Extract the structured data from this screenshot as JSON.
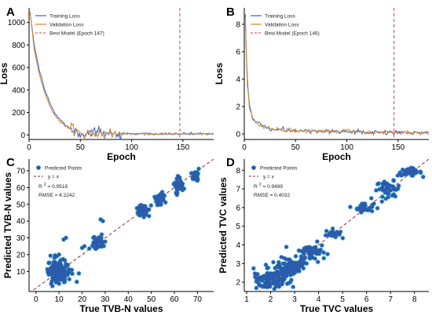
{
  "chart_data": [
    {
      "panel": "A",
      "type": "line",
      "xlabel": "Epoch",
      "ylabel": "Loss",
      "xlim": [
        0,
        180
      ],
      "ylim": [
        -40,
        1130
      ],
      "xticks": [
        0,
        50,
        100,
        150
      ],
      "yticks": [
        0,
        200,
        400,
        600,
        800,
        1000
      ],
      "legend": {
        "position": "top-left",
        "entries": [
          "Training Loss",
          "Validation Loss",
          "Best Model (Epoch 147)"
        ]
      },
      "best_epoch": 147,
      "series": [
        {
          "name": "Training Loss",
          "color": "#3a5fc8",
          "x": [
            1,
            5,
            10,
            15,
            20,
            25,
            30,
            35,
            40,
            45,
            50,
            55,
            60,
            70,
            80,
            100,
            120,
            150,
            180
          ],
          "y": [
            1090,
            800,
            580,
            410,
            290,
            200,
            140,
            90,
            60,
            40,
            30,
            20,
            15,
            12,
            10,
            9,
            9,
            10,
            9
          ]
        },
        {
          "name": "Validation Loss",
          "color": "#d2882e",
          "x": [
            1,
            5,
            10,
            15,
            20,
            25,
            30,
            35,
            40,
            45,
            50,
            55,
            60,
            70,
            80,
            100,
            120,
            150,
            180
          ],
          "y": [
            1100,
            760,
            540,
            380,
            260,
            175,
            120,
            80,
            55,
            40,
            28,
            20,
            15,
            12,
            10,
            9,
            9,
            10,
            9
          ]
        }
      ]
    },
    {
      "panel": "B",
      "type": "line",
      "xlabel": "Epoch",
      "ylabel": "Loss",
      "xlim": [
        0,
        180
      ],
      "ylim": [
        -0.4,
        9.2
      ],
      "xticks": [
        0,
        50,
        100,
        150
      ],
      "yticks": [
        0,
        2,
        4,
        6,
        8
      ],
      "legend": {
        "position": "top-left",
        "entries": [
          "Training Loss",
          "Validation Loss",
          "Best Model (Epoch 146)"
        ]
      },
      "best_epoch": 146,
      "series": [
        {
          "name": "Training Loss",
          "color": "#3a5fc8",
          "x": [
            1,
            2,
            3,
            5,
            8,
            12,
            20,
            30,
            50,
            80,
            120,
            150,
            180
          ],
          "y": [
            8.9,
            6.0,
            4.0,
            2.2,
            1.2,
            0.8,
            0.5,
            0.35,
            0.25,
            0.2,
            0.15,
            0.12,
            0.1
          ]
        },
        {
          "name": "Validation Loss",
          "color": "#d2882e",
          "x": [
            1,
            2,
            3,
            5,
            8,
            12,
            20,
            30,
            50,
            80,
            120,
            150,
            180
          ],
          "y": [
            8.7,
            5.6,
            3.8,
            2.0,
            1.1,
            0.75,
            0.5,
            0.35,
            0.25,
            0.2,
            0.15,
            0.12,
            0.1
          ]
        }
      ]
    },
    {
      "panel": "C",
      "type": "scatter",
      "xlabel": "True TVB-N values",
      "ylabel": "Predicted TVB-N values",
      "xlim": [
        -3,
        77
      ],
      "ylim": [
        -2,
        77
      ],
      "xticks": [
        0,
        10,
        20,
        30,
        40,
        50,
        60,
        70
      ],
      "yticks": [
        10,
        20,
        30,
        40,
        50,
        60,
        70
      ],
      "legend": {
        "position": "top-left",
        "entries": [
          "Predicted Points",
          "y = x"
        ]
      },
      "r2_label": "R",
      "r2_sup": "2",
      "r2_value": "= 0.9518",
      "rmse": "RMSE = 4.2242",
      "clusters": [
        {
          "x": 9.5,
          "y": 10,
          "sx": 2.6,
          "sy": 3.2,
          "n": 140
        },
        {
          "x": 27,
          "y": 27,
          "sx": 1.3,
          "sy": 2.0,
          "n": 40
        },
        {
          "x": 46,
          "y": 46,
          "sx": 1.3,
          "sy": 1.8,
          "n": 50
        },
        {
          "x": 54,
          "y": 53,
          "sx": 1.0,
          "sy": 1.8,
          "n": 40
        },
        {
          "x": 62,
          "y": 61,
          "sx": 1.0,
          "sy": 2.2,
          "n": 50
        },
        {
          "x": 69,
          "y": 68,
          "sx": 1.0,
          "sy": 1.4,
          "n": 30
        }
      ],
      "points": [
        [
          12,
          29
        ],
        [
          13,
          30
        ],
        [
          28,
          41
        ],
        [
          29,
          40
        ],
        [
          8,
          18
        ],
        [
          9,
          19
        ],
        [
          10,
          20
        ],
        [
          20,
          24
        ],
        [
          21,
          25
        ],
        [
          49,
          43
        ]
      ]
    },
    {
      "panel": "D",
      "type": "scatter",
      "xlabel": "True TVC values",
      "ylabel": "Predicted TVC values",
      "xlim": [
        0.9,
        8.6
      ],
      "ylim": [
        1.5,
        8.6
      ],
      "xticks": [
        1,
        2,
        3,
        4,
        5,
        6,
        7,
        8
      ],
      "yticks": [
        2,
        3,
        4,
        5,
        6,
        7,
        8
      ],
      "legend": {
        "position": "top-left",
        "entries": [
          "Predicted Points",
          "y = x"
        ]
      },
      "r2_label": "R",
      "r2_sup": "2",
      "r2_value": "= 0.9499",
      "rmse": "RMSE = 0.4032",
      "clusters": [
        {
          "x": 2.1,
          "y": 2.2,
          "sx": 0.35,
          "sy": 0.25,
          "n": 110
        },
        {
          "x": 2.8,
          "y": 2.8,
          "sx": 0.3,
          "sy": 0.25,
          "n": 90
        },
        {
          "x": 3.7,
          "y": 3.6,
          "sx": 0.3,
          "sy": 0.25,
          "n": 60
        },
        {
          "x": 4.6,
          "y": 4.6,
          "sx": 0.15,
          "sy": 0.12,
          "n": 25
        },
        {
          "x": 5.9,
          "y": 6.0,
          "sx": 0.2,
          "sy": 0.12,
          "n": 35
        },
        {
          "x": 6.9,
          "y": 7.0,
          "sx": 0.25,
          "sy": 0.2,
          "n": 45
        },
        {
          "x": 7.8,
          "y": 7.9,
          "sx": 0.25,
          "sy": 0.1,
          "n": 45
        }
      ],
      "points": [
        [
          3.5,
          3.0
        ],
        [
          1.6,
          1.8
        ],
        [
          6.2,
          6.5
        ],
        [
          7.2,
          6.6
        ]
      ]
    }
  ],
  "style": {
    "train_color": "#3a5fc8",
    "val_color": "#d2882e",
    "best_line_color": "#c9405a",
    "diag_color": "#a0222e",
    "point_fill": "#2a5cab",
    "point_halo": "#5dd3e6"
  }
}
